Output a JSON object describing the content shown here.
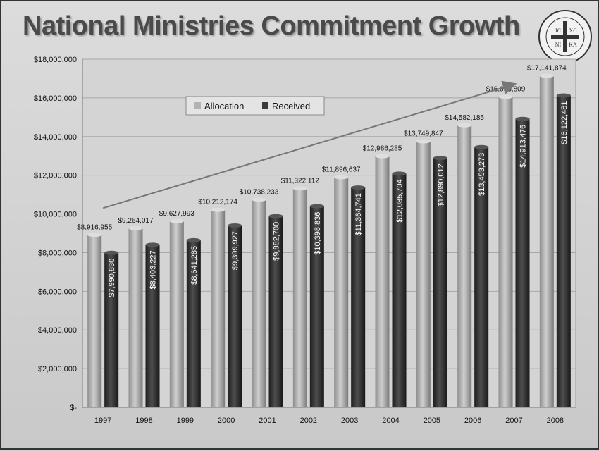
{
  "slide": {
    "title": "National Ministries Commitment Growth",
    "seal_icon": "orthodox-cross-seal-icon",
    "seal_text": [
      "IC",
      "XC",
      "NI",
      "KA"
    ]
  },
  "colors": {
    "allocation": "#b3b3b3",
    "received": "#3a3a3a",
    "trend_arrow": "#777777"
  },
  "chart_data": {
    "type": "bar",
    "title": "National Ministries Commitment Growth",
    "categories": [
      "1997",
      "1998",
      "1999",
      "2000",
      "2001",
      "2002",
      "2003",
      "2004",
      "2005",
      "2006",
      "2007",
      "2008"
    ],
    "series": [
      {
        "name": "Allocation",
        "values": [
          8916955,
          9264017,
          9627993,
          10212174,
          10738233,
          11322112,
          11896637,
          12986285,
          13749847,
          14582185,
          16053809,
          17141874
        ],
        "labels": [
          "$8,916,955",
          "$9,264,017",
          "$9,627,993",
          "$10,212,174",
          "$10,738,233",
          "$11,322,112",
          "$11,896,637",
          "$12,986,285",
          "$13,749,847",
          "$14,582,185",
          "$16,053,809",
          "$17,141,874"
        ]
      },
      {
        "name": "Received",
        "values": [
          7990830,
          8403227,
          8641285,
          9399927,
          9882700,
          10398836,
          11364741,
          12085704,
          12890012,
          13453273,
          14913476,
          16122481
        ],
        "labels": [
          "$7,990,830",
          "$8,403,227",
          "$8,641,285",
          "$9,399,927",
          "$9,882,700",
          "$10,398,836",
          "$11,364,741",
          "$12,085,704",
          "$12,890,012",
          "$13,453,273",
          "$14,913,476",
          "$16,122,481"
        ]
      }
    ],
    "ylim": [
      0,
      18000000
    ],
    "yticks": [
      0,
      2000000,
      4000000,
      6000000,
      8000000,
      10000000,
      12000000,
      14000000,
      16000000,
      18000000
    ],
    "ytick_labels": [
      "$-",
      "$2,000,000",
      "$4,000,000",
      "$6,000,000",
      "$8,000,000",
      "$10,000,000",
      "$12,000,000",
      "$14,000,000",
      "$16,000,000",
      "$18,000,000"
    ],
    "grid": true,
    "legend": {
      "placement": "top-left",
      "entries": [
        "Allocation",
        "Received"
      ]
    },
    "trend_arrow": {
      "from": [
        "1997",
        10300000
      ],
      "to": [
        "2007",
        16700000
      ]
    }
  }
}
